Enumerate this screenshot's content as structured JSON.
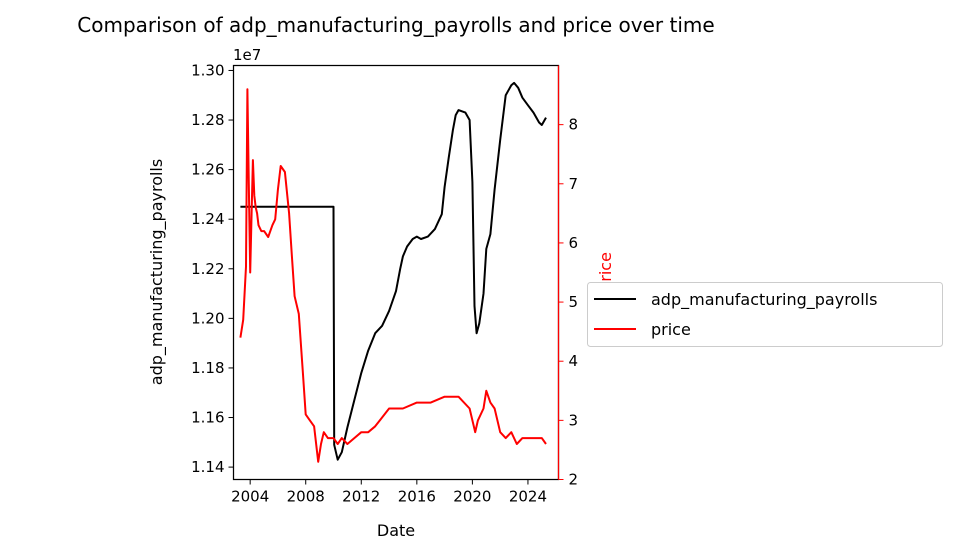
{
  "chart_data": {
    "type": "line",
    "title": "Comparison of adp_manufacturing_payrolls and price over time",
    "xlabel": "Date",
    "ylabel_left": "adp_manufacturing_payrolls",
    "ylabel_right": "price",
    "left_axis_offset_text": "1e7",
    "xlim": [
      2002.8,
      2026.2
    ],
    "ylim_left": [
      11.35,
      13.02
    ],
    "ylim_right": [
      2.0,
      9.0
    ],
    "x_ticks": [
      2004,
      2008,
      2012,
      2016,
      2020,
      2024
    ],
    "x_tick_labels": [
      "2004",
      "2008",
      "2012",
      "2016",
      "2020",
      "2024"
    ],
    "y_left_ticks": [
      11.4,
      11.6,
      11.8,
      12.0,
      12.2,
      12.4,
      12.6,
      12.8,
      13.0
    ],
    "y_left_tick_labels": [
      "1.14",
      "1.16",
      "1.18",
      "1.20",
      "1.22",
      "1.24",
      "1.26",
      "1.28",
      "1.30"
    ],
    "y_right_ticks": [
      2,
      3,
      4,
      5,
      6,
      7,
      8
    ],
    "y_right_tick_labels": [
      "2",
      "3",
      "4",
      "5",
      "6",
      "7",
      "8"
    ],
    "legend_position": "right, outside plot",
    "grid": false,
    "series": [
      {
        "name": "adp_manufacturing_payrolls",
        "axis": "left",
        "color": "#000000",
        "x": [
          2003.3,
          2010.0,
          2010.05,
          2010.3,
          2010.6,
          2011.0,
          2011.5,
          2012.0,
          2012.5,
          2013.0,
          2013.5,
          2014.0,
          2014.5,
          2014.8,
          2015.0,
          2015.3,
          2015.7,
          2016.0,
          2016.3,
          2016.8,
          2017.3,
          2017.8,
          2018.0,
          2018.3,
          2018.6,
          2018.8,
          2019.0,
          2019.5,
          2019.8,
          2020.0,
          2020.15,
          2020.3,
          2020.5,
          2020.8,
          2021.0,
          2021.3,
          2021.6,
          2022.0,
          2022.4,
          2022.8,
          2023.0,
          2023.3,
          2023.6,
          2024.0,
          2024.4,
          2024.8,
          2025.0,
          2025.3
        ],
        "values": [
          12.45,
          12.45,
          11.49,
          11.43,
          11.46,
          11.56,
          11.67,
          11.78,
          11.87,
          11.94,
          11.97,
          12.03,
          12.11,
          12.2,
          12.25,
          12.29,
          12.32,
          12.33,
          12.32,
          12.33,
          12.36,
          12.42,
          12.53,
          12.65,
          12.76,
          12.82,
          12.84,
          12.83,
          12.8,
          12.55,
          12.05,
          11.94,
          11.98,
          12.1,
          12.28,
          12.34,
          12.52,
          12.72,
          12.9,
          12.94,
          12.95,
          12.93,
          12.89,
          12.86,
          12.83,
          12.79,
          12.78,
          12.81
        ]
      },
      {
        "name": "price",
        "axis": "right",
        "color": "#ff0000",
        "x": [
          2003.3,
          2003.5,
          2003.7,
          2003.8,
          2003.9,
          2004.0,
          2004.1,
          2004.2,
          2004.3,
          2004.4,
          2004.5,
          2004.6,
          2004.8,
          2005.0,
          2005.3,
          2005.6,
          2005.8,
          2006.0,
          2006.2,
          2006.5,
          2006.8,
          2007.0,
          2007.2,
          2007.5,
          2007.8,
          2008.0,
          2008.3,
          2008.6,
          2008.9,
          2009.1,
          2009.3,
          2009.6,
          2010.0,
          2010.3,
          2010.6,
          2011.0,
          2011.5,
          2012.0,
          2012.5,
          2013.0,
          2014.0,
          2015.0,
          2016.0,
          2017.0,
          2018.0,
          2019.0,
          2019.8,
          2020.2,
          2020.4,
          2020.8,
          2021.0,
          2021.3,
          2021.6,
          2022.0,
          2022.4,
          2022.8,
          2023.2,
          2023.6,
          2024.0,
          2024.5,
          2025.0,
          2025.3
        ],
        "values": [
          4.4,
          4.7,
          5.6,
          8.6,
          7.0,
          5.5,
          6.5,
          7.4,
          6.8,
          6.6,
          6.5,
          6.3,
          6.2,
          6.2,
          6.1,
          6.3,
          6.4,
          6.9,
          7.3,
          7.2,
          6.5,
          5.8,
          5.1,
          4.8,
          3.8,
          3.1,
          3.0,
          2.9,
          2.3,
          2.6,
          2.8,
          2.7,
          2.7,
          2.6,
          2.7,
          2.6,
          2.7,
          2.8,
          2.8,
          2.9,
          3.2,
          3.2,
          3.3,
          3.3,
          3.4,
          3.4,
          3.2,
          2.8,
          3.0,
          3.2,
          3.5,
          3.3,
          3.2,
          2.8,
          2.7,
          2.8,
          2.6,
          2.7,
          2.7,
          2.7,
          2.7,
          2.6
        ]
      }
    ]
  }
}
